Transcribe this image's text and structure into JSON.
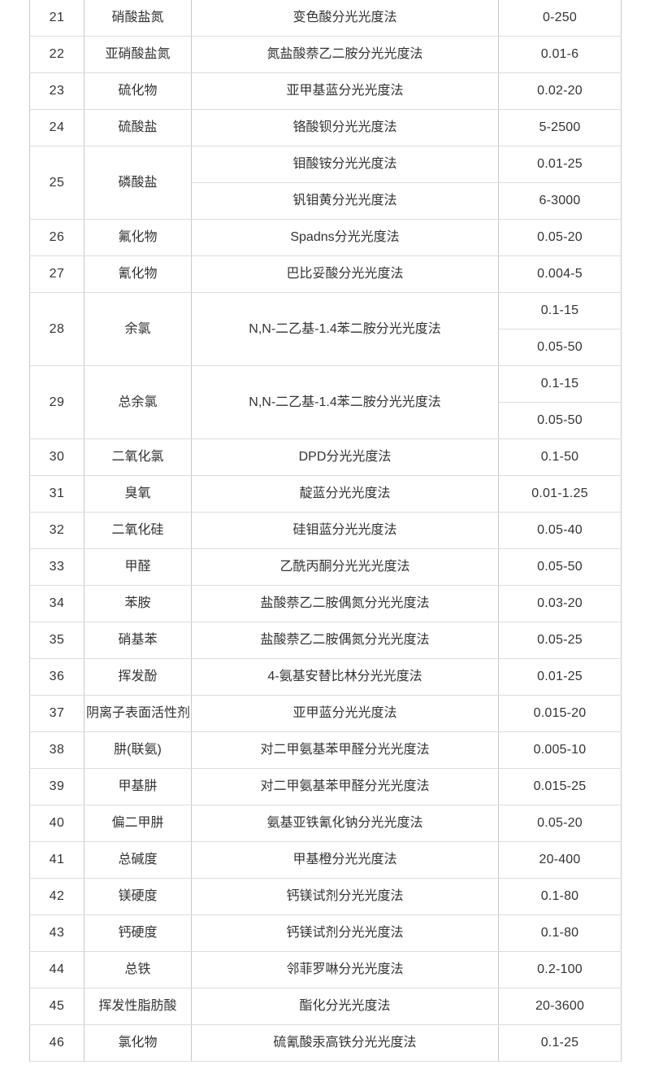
{
  "colors": {
    "text": "#333333",
    "border_vertical": "#c8c8c8",
    "border_horizontal": "#dcdcdc",
    "background": "#ffffff"
  },
  "table": {
    "rows": [
      {
        "no": "21",
        "name": "硝酸盐氮",
        "methods": [
          "变色酸分光光度法"
        ],
        "ranges": [
          "0-250"
        ]
      },
      {
        "no": "22",
        "name": "亚硝酸盐氮",
        "methods": [
          "氮盐酸萘乙二胺分光光度法"
        ],
        "ranges": [
          "0.01-6"
        ]
      },
      {
        "no": "23",
        "name": "硫化物",
        "methods": [
          "亚甲基蓝分光光度法"
        ],
        "ranges": [
          "0.02-20"
        ]
      },
      {
        "no": "24",
        "name": "硫酸盐",
        "methods": [
          "铬酸钡分光光度法"
        ],
        "ranges": [
          "5-2500"
        ]
      },
      {
        "no": "25",
        "name": "磷酸盐",
        "methods": [
          "钼酸铵分光光度法",
          "钒钼黄分光光度法"
        ],
        "ranges": [
          "0.01-25",
          "6-3000"
        ]
      },
      {
        "no": "26",
        "name": "氟化物",
        "methods": [
          "Spadns分光光度法"
        ],
        "ranges": [
          "0.05-20"
        ]
      },
      {
        "no": "27",
        "name": "氰化物",
        "methods": [
          "巴比妥酸分光光度法"
        ],
        "ranges": [
          "0.004-5"
        ]
      },
      {
        "no": "28",
        "name": "余氯",
        "methods": [
          "N,N-二乙基-1.4苯二胺分光光度法"
        ],
        "ranges": [
          "0.1-15",
          "0.05-50"
        ]
      },
      {
        "no": "29",
        "name": "总余氯",
        "methods": [
          "N,N-二乙基-1.4苯二胺分光光度法"
        ],
        "ranges": [
          "0.1-15",
          "0.05-50"
        ]
      },
      {
        "no": "30",
        "name": "二氧化氯",
        "methods": [
          "DPD分光光度法"
        ],
        "ranges": [
          "0.1-50"
        ]
      },
      {
        "no": "31",
        "name": "臭氧",
        "methods": [
          "靛蓝分光光度法"
        ],
        "ranges": [
          "0.01-1.25"
        ]
      },
      {
        "no": "32",
        "name": "二氧化硅",
        "methods": [
          "硅钼蓝分光光度法"
        ],
        "ranges": [
          "0.05-40"
        ]
      },
      {
        "no": "33",
        "name": "甲醛",
        "methods": [
          "乙酰丙酮分光光光度法"
        ],
        "ranges": [
          "0.05-50"
        ]
      },
      {
        "no": "34",
        "name": "苯胺",
        "methods": [
          "盐酸萘乙二胺偶氮分光光度法"
        ],
        "ranges": [
          "0.03-20"
        ]
      },
      {
        "no": "35",
        "name": "硝基苯",
        "methods": [
          "盐酸萘乙二胺偶氮分光光度法"
        ],
        "ranges": [
          "0.05-25"
        ]
      },
      {
        "no": "36",
        "name": "挥发酚",
        "methods": [
          "4-氨基安替比林分光光度法"
        ],
        "ranges": [
          "0.01-25"
        ]
      },
      {
        "no": "37",
        "name": "阴离子表面活性剂",
        "methods": [
          "亚甲蓝分光光度法"
        ],
        "ranges": [
          "0.015-20"
        ]
      },
      {
        "no": "38",
        "name": "肼(联氨)",
        "methods": [
          "对二甲氨基苯甲醛分光光度法"
        ],
        "ranges": [
          "0.005-10"
        ]
      },
      {
        "no": "39",
        "name": "甲基肼",
        "methods": [
          "对二甲氨基苯甲醛分光光度法"
        ],
        "ranges": [
          "0.015-25"
        ]
      },
      {
        "no": "40",
        "name": "偏二甲肼",
        "methods": [
          "氨基亚铁氰化钠分光光度法"
        ],
        "ranges": [
          "0.05-20"
        ]
      },
      {
        "no": "41",
        "name": "总碱度",
        "methods": [
          "甲基橙分光光度法"
        ],
        "ranges": [
          "20-400"
        ]
      },
      {
        "no": "42",
        "name": "镁硬度",
        "methods": [
          "钙镁试剂分光光度法"
        ],
        "ranges": [
          "0.1-80"
        ]
      },
      {
        "no": "43",
        "name": "钙硬度",
        "methods": [
          "钙镁试剂分光光度法"
        ],
        "ranges": [
          "0.1-80"
        ]
      },
      {
        "no": "44",
        "name": "总铁",
        "methods": [
          "邻菲罗啉分光光度法"
        ],
        "ranges": [
          "0.2-100"
        ]
      },
      {
        "no": "45",
        "name": "挥发性脂肪酸",
        "methods": [
          "酯化分光光度法"
        ],
        "ranges": [
          "20-3600"
        ]
      },
      {
        "no": "46",
        "name": "氯化物",
        "methods": [
          "硫氰酸汞高铁分光光度法"
        ],
        "ranges": [
          "0.1-25"
        ]
      }
    ]
  }
}
